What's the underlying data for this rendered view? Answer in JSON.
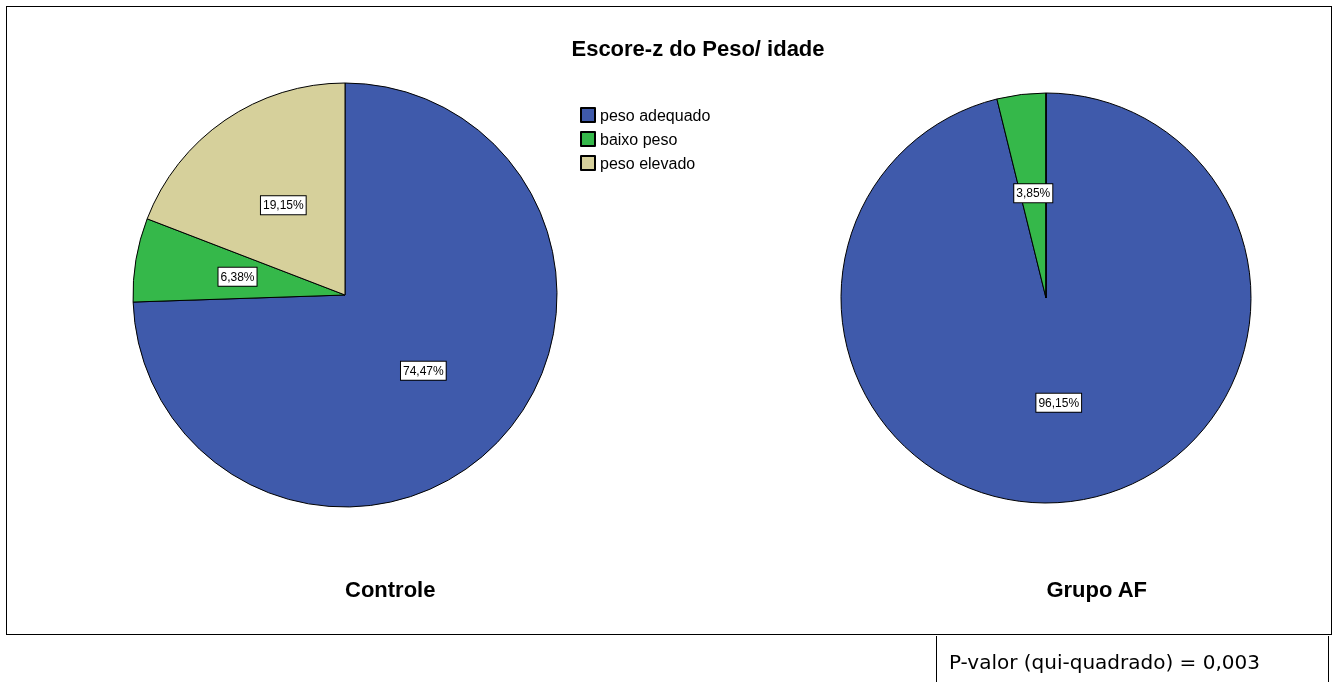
{
  "chart_data": {
    "type": "pie",
    "title": "Escore-z do Peso/ idade",
    "categories": [
      "peso adequado",
      "baixo peso",
      "peso elevado"
    ],
    "colors": [
      "#3f5aab",
      "#35b84a",
      "#d6d09b"
    ],
    "legend": "top right",
    "annotations": [
      "P-valor (qui-quadrado) = 0,003"
    ],
    "series": [
      {
        "name": "Controle",
        "values": [
          74.47,
          6.38,
          19.15
        ],
        "value_labels": [
          "74,47%",
          "6,38%",
          "19,15%"
        ]
      },
      {
        "name": "Grupo AF",
        "values": [
          96.15,
          3.85,
          0
        ],
        "value_labels": [
          "96,15%",
          "3,85%",
          null
        ]
      }
    ]
  }
}
